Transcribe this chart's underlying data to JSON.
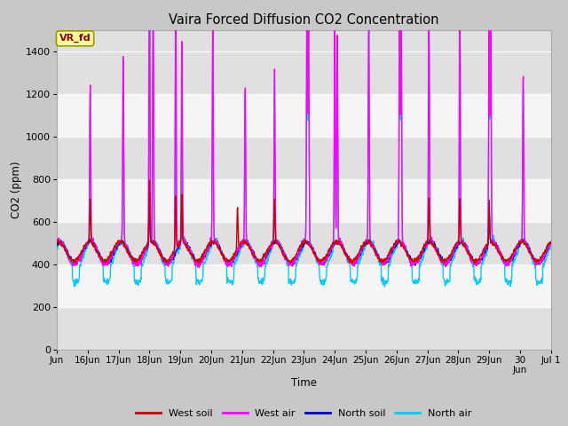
{
  "title": "Vaira Forced Diffusion CO2 Concentration",
  "xlabel": "Time",
  "ylabel": "CO2 (ppm)",
  "ylim": [
    0,
    1500
  ],
  "yticks": [
    0,
    200,
    400,
    600,
    800,
    1000,
    1200,
    1400
  ],
  "xlim_start": 0,
  "xlim_end": 16,
  "xtick_labels": [
    "Jun",
    "16Jun",
    "17Jun",
    "18Jun",
    "19Jun",
    "20Jun",
    "21Jun",
    "22Jun",
    "23Jun",
    "24Jun",
    "25Jun",
    "26Jun",
    "27Jun",
    "28Jun",
    "29Jun",
    "30\nJun",
    "Jul 1"
  ],
  "colors": {
    "west_soil": "#cc0000",
    "west_air": "#ff00ff",
    "north_soil": "#0000cc",
    "north_air": "#00ccff"
  },
  "legend_labels": [
    "West soil",
    "West air",
    "North soil",
    "North air"
  ],
  "annotation_text": "VR_fd",
  "annotation_color": "#8b0000",
  "annotation_bg": "#ffff99",
  "seed": 42,
  "stripe_light": "#f5f5f5",
  "stripe_dark": "#e0e0e0",
  "fig_bg": "#c8c8c8",
  "hline_color": "#ffffff"
}
